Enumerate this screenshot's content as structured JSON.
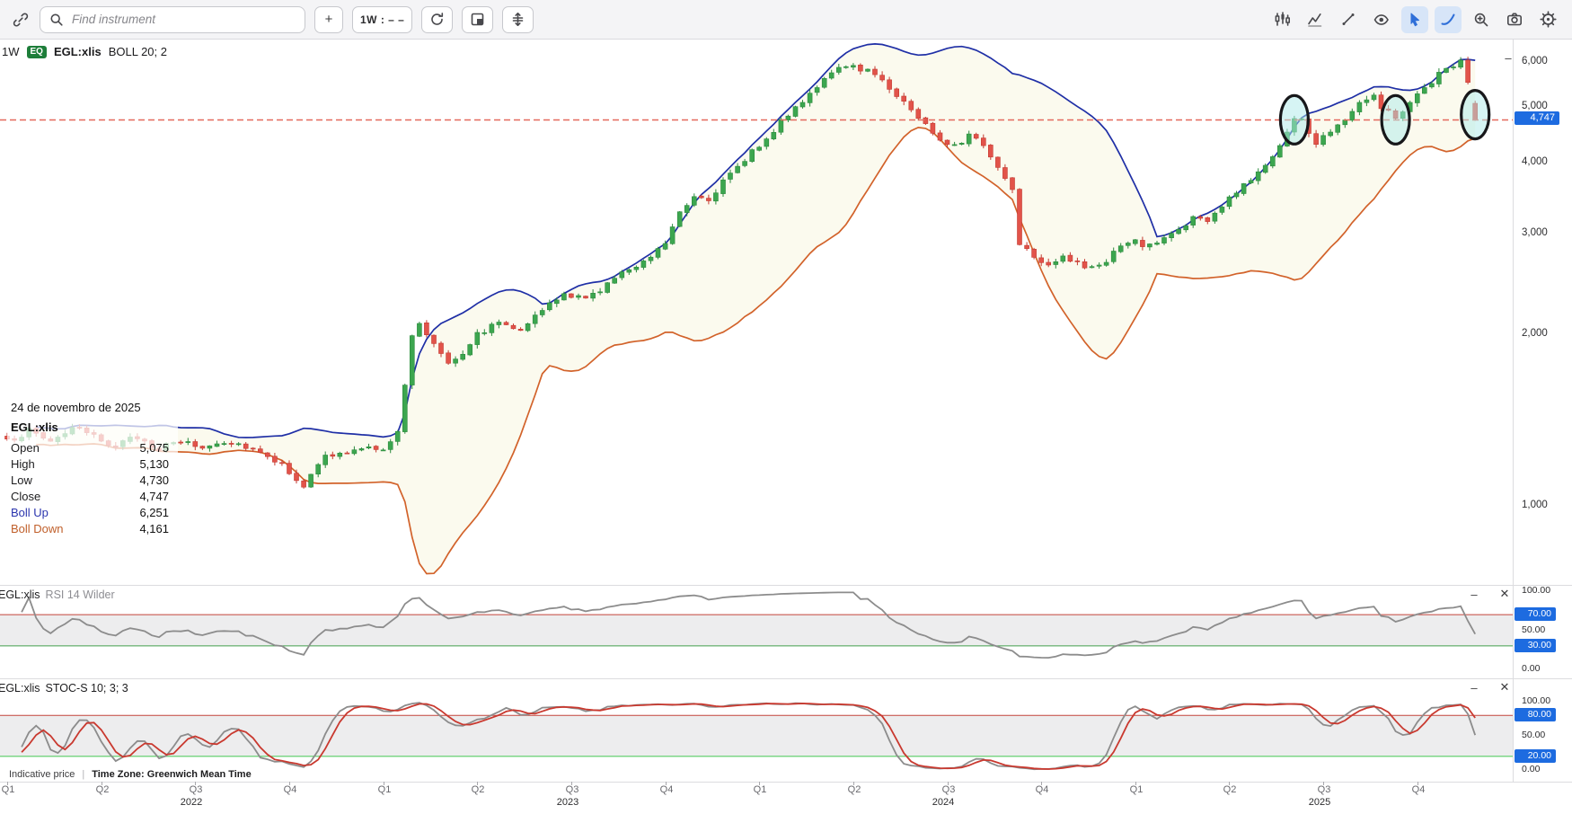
{
  "toolbar": {
    "search": {
      "placeholder": "Find instrument"
    },
    "add_label": "+",
    "period_label": "1W : – –",
    "icons": {
      "link": "chain",
      "search": "magnifier",
      "refresh": "circular-arrow",
      "layout": "panel-squares",
      "y_scale": "vertical-arrows",
      "indicators": "candle-bars",
      "chart_style": "line-chart",
      "trendline": "diagonal-line-dots",
      "visibility": "eye",
      "cursor": "pointer-arrow",
      "curve_tool": "freehand-curve",
      "zoom": "magnifier-plus",
      "snapshot": "camera",
      "settings": "gear"
    }
  },
  "main_chart": {
    "legend": {
      "interval": "1W",
      "badge": "EQ",
      "symbol": "EGL:xlis",
      "study": "BOLL 20; 2"
    },
    "minimize": "–",
    "y_ticks": [
      {
        "v": 6000,
        "label": "6,000"
      },
      {
        "v": 5000,
        "label": "5,000"
      },
      {
        "v": 4000,
        "label": "4,000"
      },
      {
        "v": 3000,
        "label": "3,000"
      },
      {
        "v": 2000,
        "label": "2,000"
      },
      {
        "v": 1000,
        "label": "1,000"
      }
    ],
    "price_marker": {
      "value": 4747,
      "label": "4,747"
    },
    "hover_panel": {
      "date": "24 de novembro de 2025",
      "symbol": "EGL:xlis",
      "rows": [
        {
          "label": "Open",
          "value": "5,075",
          "color": "#1c1c1e"
        },
        {
          "label": "High",
          "value": "5,130",
          "color": "#1c1c1e"
        },
        {
          "label": "Low",
          "value": "4,730",
          "color": "#1c1c1e"
        },
        {
          "label": "Close",
          "value": "4,747",
          "color": "#1c1c1e"
        },
        {
          "label": "Boll Up",
          "value": "6,251",
          "color": "#2b35ae"
        },
        {
          "label": "Boll Down",
          "value": "4,161",
          "color": "#c05f2a"
        }
      ]
    }
  },
  "rsi_panel": {
    "title_symbol": "EGL:xlis",
    "title_study": "RSI 14 Wilder",
    "minimize": "–",
    "close": "✕",
    "levels": {
      "upper": 70,
      "lower": 30
    },
    "axis": [
      {
        "v": 100,
        "label": "100.00",
        "badge": false
      },
      {
        "v": 70,
        "label": "70.00",
        "badge": true
      },
      {
        "v": 50,
        "label": "50.00",
        "badge": false
      },
      {
        "v": 30,
        "label": "30.00",
        "badge": true
      },
      {
        "v": 0,
        "label": "0.00",
        "badge": false
      }
    ]
  },
  "stoch_panel": {
    "title_symbol": "EGL:xlis",
    "title_study": "STOC-S 10; 3; 3",
    "minimize": "–",
    "close": "✕",
    "levels": {
      "upper": 80,
      "lower": 20
    },
    "axis": [
      {
        "v": 100,
        "label": "100.00",
        "badge": false
      },
      {
        "v": 80,
        "label": "80.00",
        "badge": true
      },
      {
        "v": 50,
        "label": "50.00",
        "badge": false
      },
      {
        "v": 20,
        "label": "20.00",
        "badge": true
      },
      {
        "v": 0,
        "label": "0.00",
        "badge": false
      }
    ]
  },
  "footer": {
    "left": "Indicative price",
    "separator": "|",
    "timezone": "Time Zone: Greenwich Mean Time"
  },
  "x_axis": {
    "quarter_labels": [
      "Q1",
      "Q2",
      "Q3",
      "Q4"
    ],
    "years": [
      "2022",
      "2023",
      "2024",
      "2025"
    ]
  },
  "colors": {
    "up": "#3ca64f",
    "up_stroke": "#2b8a3d",
    "down": "#e2534a",
    "down_stroke": "#c43a31",
    "boll_up": "#1f2fa6",
    "boll_down": "#d2622a",
    "boll_fill": "#fbfaee",
    "ref_line": "#e4695c",
    "rsi_line": "#8c8c8c",
    "stoch_k": "#8c8c8c",
    "stoch_d": "#c9392f",
    "level_red": "#c4443a",
    "level_green_rsi": "#43a04d",
    "level_green_stoch": "#57cb63",
    "band_bg": "#ededee",
    "badge_blue": "#1d6be0",
    "annotation_fill": "rgba(174,233,233,0.5)",
    "annotation_stroke": "#17171a",
    "accent": "#2f6fd8",
    "eq_badge": "#1e7e3a"
  },
  "chart_data": {
    "type": "candlestick",
    "symbol": "EGL:xlis",
    "interval": "1W",
    "points": 204,
    "price_scale": "log",
    "visible_price_range": [
      730,
      6550
    ],
    "y_ticks": [
      6000,
      5000,
      4000,
      3000,
      2000,
      1000
    ],
    "close_anchors": [
      [
        0,
        1295
      ],
      [
        3,
        1355
      ],
      [
        6,
        1300
      ],
      [
        9,
        1370
      ],
      [
        12,
        1320
      ],
      [
        15,
        1275
      ],
      [
        18,
        1320
      ],
      [
        21,
        1260
      ],
      [
        24,
        1295
      ],
      [
        27,
        1265
      ],
      [
        30,
        1300
      ],
      [
        33,
        1275
      ],
      [
        36,
        1230
      ],
      [
        39,
        1150
      ],
      [
        41,
        1085
      ],
      [
        44,
        1220
      ],
      [
        47,
        1240
      ],
      [
        50,
        1260
      ],
      [
        52,
        1265
      ],
      [
        54,
        1340
      ],
      [
        56,
        1980
      ],
      [
        57,
        2080
      ],
      [
        59,
        1930
      ],
      [
        61,
        1790
      ],
      [
        63,
        1860
      ],
      [
        65,
        2000
      ],
      [
        68,
        2100
      ],
      [
        71,
        2050
      ],
      [
        74,
        2200
      ],
      [
        77,
        2350
      ],
      [
        80,
        2300
      ],
      [
        83,
        2450
      ],
      [
        86,
        2600
      ],
      [
        89,
        2750
      ],
      [
        91,
        2900
      ],
      [
        93,
        3300
      ],
      [
        95,
        3500
      ],
      [
        97,
        3450
      ],
      [
        99,
        3700
      ],
      [
        101,
        3900
      ],
      [
        103,
        4200
      ],
      [
        105,
        4400
      ],
      [
        107,
        4700
      ],
      [
        109,
        5000
      ],
      [
        111,
        5300
      ],
      [
        113,
        5600
      ],
      [
        115,
        5800
      ],
      [
        117,
        5900
      ],
      [
        119,
        5800
      ],
      [
        121,
        5600
      ],
      [
        123,
        5250
      ],
      [
        125,
        4950
      ],
      [
        127,
        4650
      ],
      [
        129,
        4400
      ],
      [
        131,
        4300
      ],
      [
        133,
        4450
      ],
      [
        135,
        4300
      ],
      [
        136,
        4100
      ],
      [
        138,
        3750
      ],
      [
        139,
        3600
      ],
      [
        140,
        2900
      ],
      [
        142,
        2750
      ],
      [
        144,
        2650
      ],
      [
        146,
        2750
      ],
      [
        148,
        2650
      ],
      [
        150,
        2600
      ],
      [
        152,
        2700
      ],
      [
        154,
        2850
      ],
      [
        156,
        2900
      ],
      [
        158,
        2850
      ],
      [
        160,
        2950
      ],
      [
        162,
        3050
      ],
      [
        164,
        3200
      ],
      [
        166,
        3150
      ],
      [
        168,
        3350
      ],
      [
        170,
        3550
      ],
      [
        172,
        3750
      ],
      [
        174,
        3950
      ],
      [
        176,
        4300
      ],
      [
        178,
        4750
      ],
      [
        179,
        4800
      ],
      [
        180,
        4500
      ],
      [
        181,
        4300
      ],
      [
        183,
        4550
      ],
      [
        185,
        4800
      ],
      [
        187,
        5100
      ],
      [
        189,
        5300
      ],
      [
        190,
        5000
      ],
      [
        192,
        4800
      ],
      [
        194,
        5100
      ],
      [
        196,
        5400
      ],
      [
        198,
        5700
      ],
      [
        200,
        5950
      ],
      [
        201,
        6000
      ],
      [
        202,
        5500
      ],
      [
        203,
        4747
      ]
    ],
    "last_candle": {
      "open": 5075,
      "high": 5130,
      "low": 4730,
      "close": 4747
    },
    "studies": {
      "bollinger": {
        "period": 20,
        "stdev": 2
      },
      "rsi": {
        "period": 14,
        "method": "Wilder"
      },
      "stochastic": {
        "k": 10,
        "slow": 3,
        "d": 3
      }
    },
    "reference_line": {
      "value": 4747,
      "style": "dashed"
    },
    "ellipse_annotations": [
      {
        "week": 178,
        "price": 4750
      },
      {
        "week": 192,
        "price": 4750
      },
      {
        "week": 203,
        "price": 4850
      }
    ],
    "weeks_per_year": 52,
    "year_start_weeks": {
      "2022": 0,
      "2023": 52,
      "2024": 104,
      "2025": 156
    }
  }
}
